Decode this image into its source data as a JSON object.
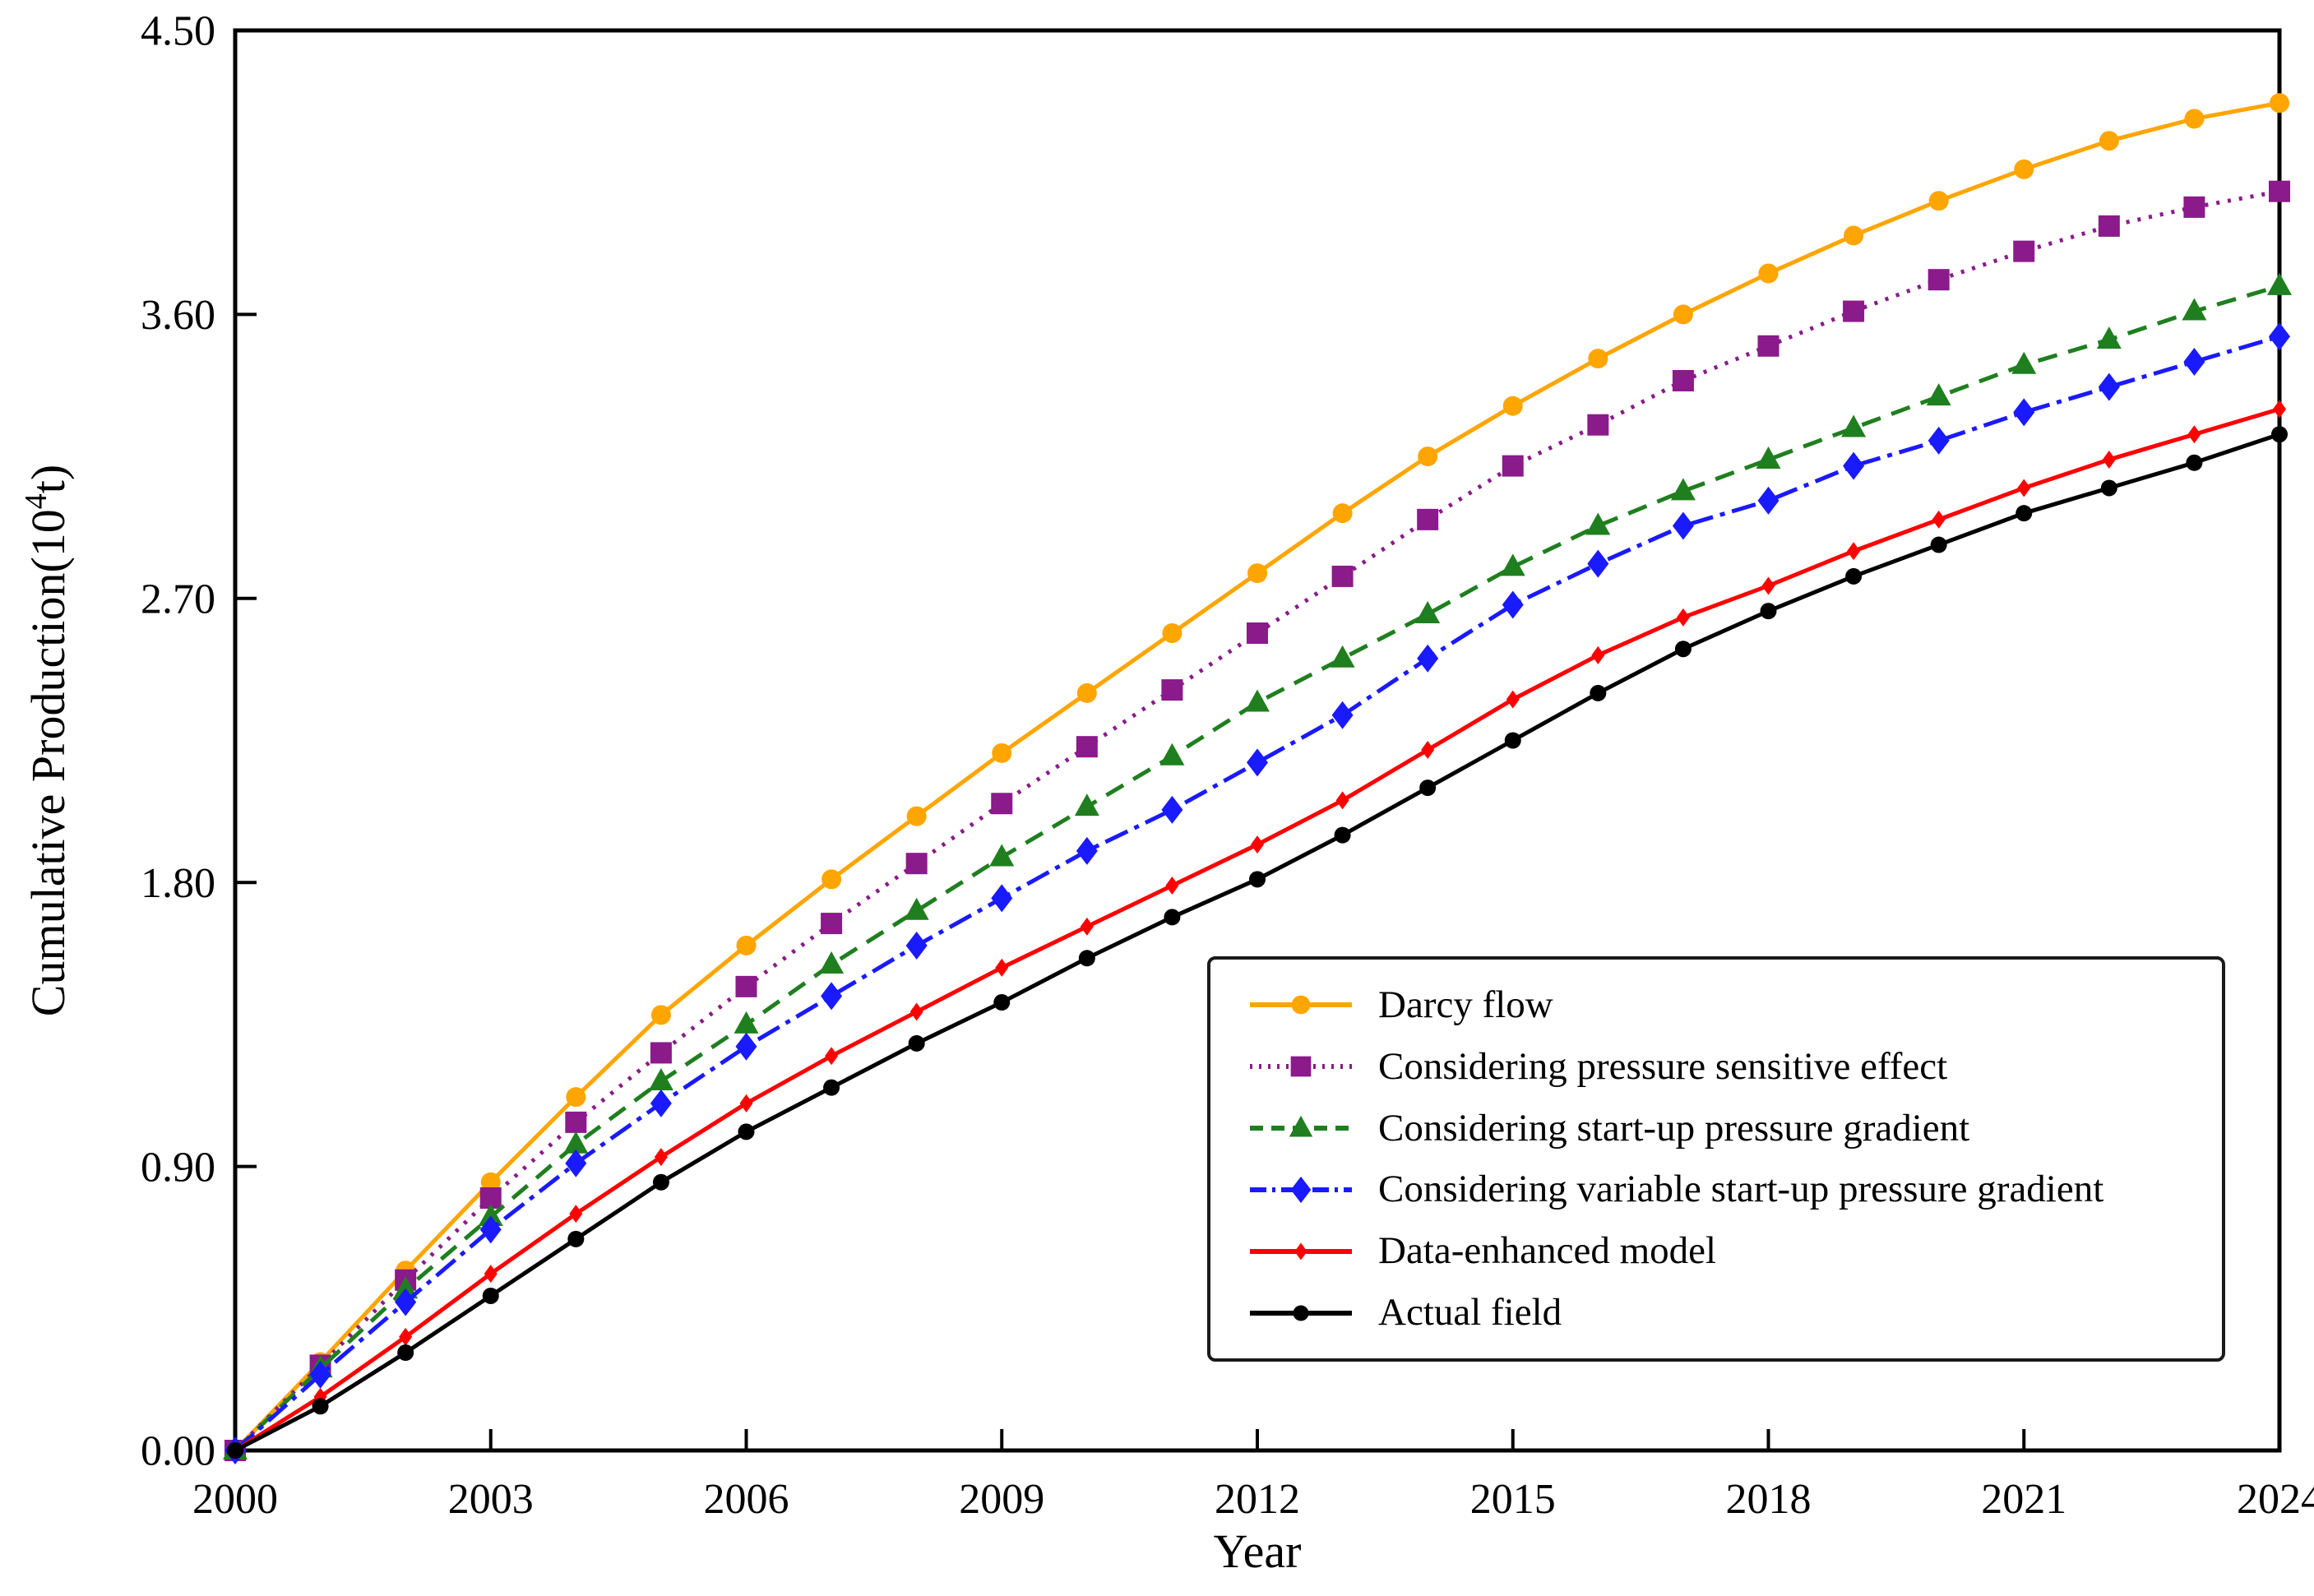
{
  "figure": {
    "xlabel": "Year",
    "ylabel_parts": [
      "Cumulative Production(10",
      "4",
      "t)"
    ]
  },
  "chart_data": {
    "type": "line",
    "title": "",
    "xlabel": "Year",
    "ylabel": "Cumulative Production(10^4 t)",
    "xlim": [
      2000,
      2024
    ],
    "ylim": [
      0.0,
      4.5
    ],
    "grid": false,
    "legend_position": "inside lower right",
    "x": [
      2000,
      2001,
      2002,
      2003,
      2004,
      2005,
      2006,
      2007,
      2008,
      2009,
      2010,
      2011,
      2012,
      2013,
      2014,
      2015,
      2016,
      2017,
      2018,
      2019,
      2020,
      2021,
      2022,
      2023,
      2024
    ],
    "xticks": [
      2000,
      2003,
      2006,
      2009,
      2012,
      2015,
      2018,
      2021,
      2024
    ],
    "ytick_labels": [
      "0.00",
      "0.90",
      "1.80",
      "2.70",
      "3.60",
      "4.50"
    ],
    "yticks": [
      0.0,
      0.9,
      1.8,
      2.7,
      3.6,
      4.5
    ],
    "series": [
      {
        "name": "Darcy flow",
        "color": "#FFA500",
        "line": "solid",
        "marker": "circle",
        "values": [
          0.0,
          0.28,
          0.57,
          0.85,
          1.12,
          1.38,
          1.6,
          1.81,
          2.01,
          2.21,
          2.4,
          2.59,
          2.78,
          2.97,
          3.15,
          3.31,
          3.46,
          3.6,
          3.73,
          3.85,
          3.96,
          4.06,
          4.15,
          4.22,
          4.27
        ]
      },
      {
        "name": "Considering pressure sensitive effect",
        "color": "#8B1A8B",
        "line": "dotted",
        "marker": "square",
        "values": [
          0.0,
          0.27,
          0.54,
          0.8,
          1.04,
          1.26,
          1.47,
          1.67,
          1.86,
          2.05,
          2.23,
          2.41,
          2.59,
          2.77,
          2.95,
          3.12,
          3.25,
          3.39,
          3.5,
          3.61,
          3.71,
          3.8,
          3.88,
          3.94,
          3.99
        ]
      },
      {
        "name": "Considering start-up pressure gradient",
        "color": "#1F7F1F",
        "line": "dashed",
        "marker": "triangle",
        "values": [
          0.0,
          0.26,
          0.51,
          0.74,
          0.97,
          1.17,
          1.35,
          1.54,
          1.71,
          1.88,
          2.04,
          2.2,
          2.37,
          2.51,
          2.65,
          2.8,
          2.93,
          3.04,
          3.14,
          3.24,
          3.34,
          3.44,
          3.52,
          3.61,
          3.69
        ]
      },
      {
        "name": "Considering variable start-up pressure gradient",
        "color": "#1A1AFF",
        "line": "dashdot",
        "marker": "diamond",
        "values": [
          0.0,
          0.24,
          0.47,
          0.7,
          0.91,
          1.1,
          1.28,
          1.44,
          1.6,
          1.75,
          1.9,
          2.03,
          2.18,
          2.33,
          2.51,
          2.68,
          2.81,
          2.93,
          3.01,
          3.12,
          3.2,
          3.29,
          3.37,
          3.45,
          3.53
        ]
      },
      {
        "name": "Data-enhanced model",
        "color": "#FF0000",
        "line": "solid",
        "marker": "thin-diamond",
        "values": [
          0.0,
          0.17,
          0.36,
          0.56,
          0.75,
          0.93,
          1.1,
          1.25,
          1.39,
          1.53,
          1.66,
          1.79,
          1.92,
          2.06,
          2.22,
          2.38,
          2.52,
          2.64,
          2.74,
          2.85,
          2.95,
          3.05,
          3.14,
          3.22,
          3.3
        ]
      },
      {
        "name": "Actual field",
        "color": "#000000",
        "line": "solid",
        "marker": "circle-small",
        "values": [
          0.0,
          0.14,
          0.31,
          0.49,
          0.67,
          0.85,
          1.01,
          1.15,
          1.29,
          1.42,
          1.56,
          1.69,
          1.81,
          1.95,
          2.1,
          2.25,
          2.4,
          2.54,
          2.66,
          2.77,
          2.87,
          2.97,
          3.05,
          3.13,
          3.22
        ]
      }
    ]
  }
}
